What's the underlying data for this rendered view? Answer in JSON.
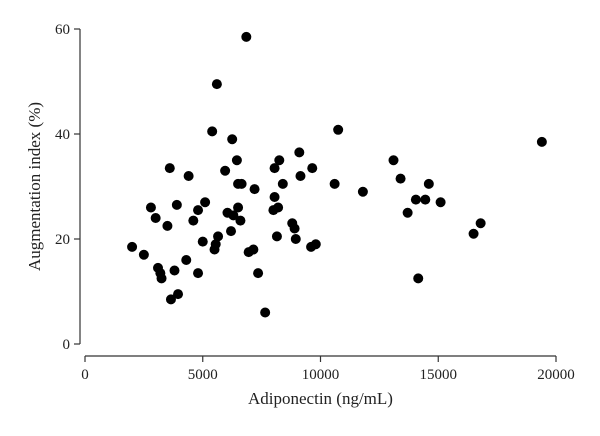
{
  "chart_data": {
    "type": "scatter",
    "title": "",
    "xlabel": "Adiponectin (ng/mL)",
    "ylabel": "Augmentation index (%)",
    "xlim": [
      0,
      20000
    ],
    "ylim": [
      0,
      60
    ],
    "xticks": [
      0,
      5000,
      10000,
      15000,
      20000
    ],
    "yticks": [
      0,
      20,
      40,
      60
    ],
    "grid": false,
    "marker_color": "#000000",
    "points": [
      [
        2000,
        18.5
      ],
      [
        2500,
        17
      ],
      [
        2800,
        26
      ],
      [
        3000,
        24
      ],
      [
        3100,
        14.5
      ],
      [
        3200,
        13.5
      ],
      [
        3250,
        12.5
      ],
      [
        3500,
        22.5
      ],
      [
        3600,
        33.5
      ],
      [
        3650,
        8.5
      ],
      [
        3800,
        14
      ],
      [
        3900,
        26.5
      ],
      [
        3950,
        9.5
      ],
      [
        4300,
        16
      ],
      [
        4400,
        32
      ],
      [
        4600,
        23.5
      ],
      [
        4800,
        25.5
      ],
      [
        4800,
        13.5
      ],
      [
        5000,
        19.5
      ],
      [
        5100,
        27
      ],
      [
        5400,
        40.5
      ],
      [
        5500,
        18
      ],
      [
        5550,
        19
      ],
      [
        5600,
        49.5
      ],
      [
        5650,
        20.5
      ],
      [
        5950,
        33
      ],
      [
        6050,
        25
      ],
      [
        6200,
        21.5
      ],
      [
        6250,
        39
      ],
      [
        6300,
        24.5
      ],
      [
        6450,
        35
      ],
      [
        6500,
        30.5
      ],
      [
        6500,
        26
      ],
      [
        6600,
        23.5
      ],
      [
        6650,
        30.5
      ],
      [
        6850,
        58.5
      ],
      [
        6950,
        17.5
      ],
      [
        7150,
        18
      ],
      [
        7200,
        29.5
      ],
      [
        7350,
        13.5
      ],
      [
        7650,
        6
      ],
      [
        8000,
        25.5
      ],
      [
        8050,
        33.5
      ],
      [
        8050,
        28
      ],
      [
        8150,
        20.5
      ],
      [
        8200,
        26
      ],
      [
        8250,
        35
      ],
      [
        8400,
        30.5
      ],
      [
        8800,
        23
      ],
      [
        8900,
        22
      ],
      [
        8950,
        20
      ],
      [
        9100,
        36.5
      ],
      [
        9150,
        32
      ],
      [
        9600,
        18.5
      ],
      [
        9650,
        33.5
      ],
      [
        9800,
        19
      ],
      [
        10600,
        30.5
      ],
      [
        10750,
        40.8
      ],
      [
        11800,
        29
      ],
      [
        13100,
        35
      ],
      [
        13400,
        31.5
      ],
      [
        13700,
        25
      ],
      [
        14050,
        27.5
      ],
      [
        14150,
        12.5
      ],
      [
        14450,
        27.5
      ],
      [
        14600,
        30.5
      ],
      [
        15100,
        27
      ],
      [
        16500,
        21
      ],
      [
        16800,
        23
      ],
      [
        19400,
        38.5
      ]
    ]
  }
}
